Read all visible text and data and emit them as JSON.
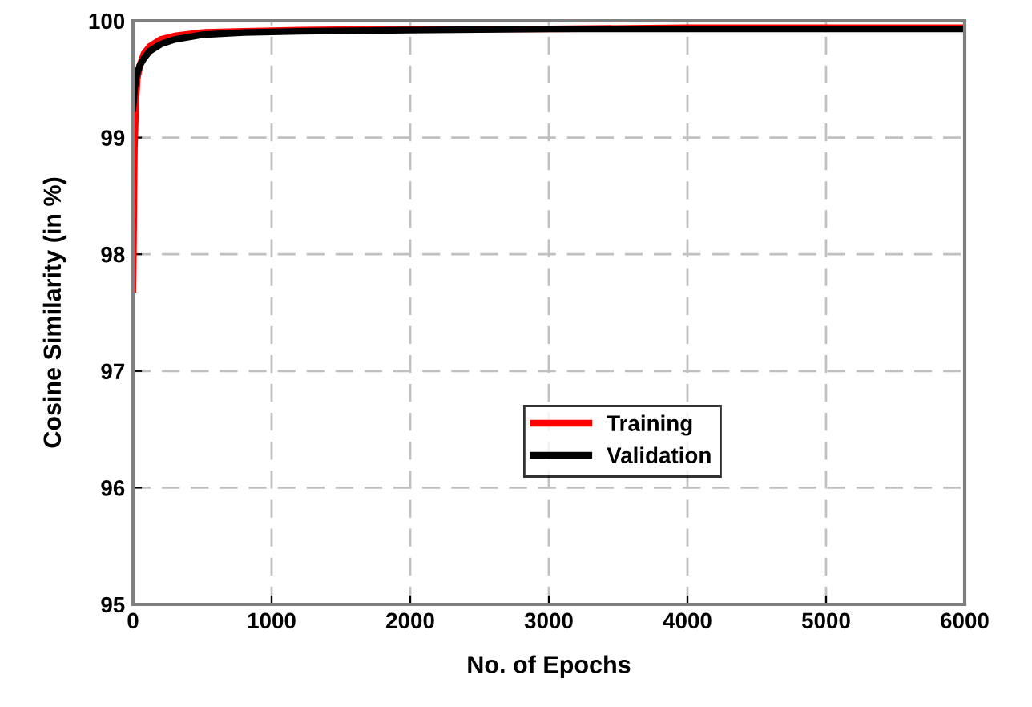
{
  "chart_data": {
    "type": "line",
    "xlabel": "No. of Epochs",
    "ylabel": "Cosine Similarity (in %)",
    "xlim": [
      0,
      6000
    ],
    "ylim": [
      95,
      100
    ],
    "xticks": [
      0,
      1000,
      2000,
      3000,
      4000,
      5000,
      6000
    ],
    "yticks": [
      95,
      96,
      97,
      98,
      99,
      100
    ],
    "grid": true,
    "legend": "bottom right",
    "marker": "none",
    "line_style": "solid",
    "series": [
      {
        "name": "Training",
        "color": "#ff0000",
        "x": [
          0,
          10,
          20,
          30,
          50,
          80,
          120,
          200,
          300,
          500,
          800,
          1200,
          2000,
          3000,
          4000,
          5000,
          6000
        ],
        "values": [
          97.7,
          98.9,
          99.3,
          99.5,
          99.62,
          99.72,
          99.78,
          99.84,
          99.87,
          99.9,
          99.91,
          99.92,
          99.93,
          99.93,
          99.94,
          99.94,
          99.94
        ]
      },
      {
        "name": "Validation",
        "color": "#000000",
        "x": [
          0,
          10,
          20,
          30,
          50,
          80,
          120,
          200,
          300,
          500,
          800,
          1200,
          2000,
          3000,
          4000,
          5000,
          6000
        ],
        "values": [
          99.25,
          99.4,
          99.5,
          99.55,
          99.62,
          99.68,
          99.74,
          99.8,
          99.84,
          99.88,
          99.9,
          99.91,
          99.92,
          99.93,
          99.93,
          99.93,
          99.93
        ]
      }
    ]
  }
}
